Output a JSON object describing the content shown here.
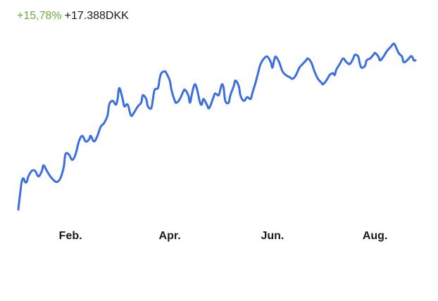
{
  "summary": {
    "change_percent": "+15,78%",
    "change_amount": "+17.388DKK",
    "positive_color": "#6aaa3a"
  },
  "chart_data": {
    "type": "line",
    "line_color": "#3b6fe0",
    "grid": false,
    "x_tick_labels": [
      {
        "label": "Feb.",
        "x": 31
      },
      {
        "label": "Apr.",
        "x": 90
      },
      {
        "label": "Jun.",
        "x": 151
      },
      {
        "label": "Aug.",
        "x": 212
      }
    ],
    "ylim": [
      0,
      100
    ],
    "xlim": [
      0,
      236
    ],
    "series": [
      {
        "values": [
          [
            0,
            0
          ],
          [
            1,
            8
          ],
          [
            2,
            15
          ],
          [
            3,
            17
          ],
          [
            4,
            15
          ],
          [
            5,
            15
          ],
          [
            6,
            18
          ],
          [
            8,
            21
          ],
          [
            10,
            21
          ],
          [
            12,
            18
          ],
          [
            14,
            21
          ],
          [
            15,
            24
          ],
          [
            17,
            21
          ],
          [
            19,
            18
          ],
          [
            21,
            16
          ],
          [
            23,
            15
          ],
          [
            25,
            17
          ],
          [
            27,
            23
          ],
          [
            28,
            30
          ],
          [
            30,
            30
          ],
          [
            32,
            27
          ],
          [
            34,
            30
          ],
          [
            36,
            37
          ],
          [
            38,
            40
          ],
          [
            40,
            37
          ],
          [
            42,
            38
          ],
          [
            43,
            40
          ],
          [
            45,
            37
          ],
          [
            47,
            40
          ],
          [
            49,
            45
          ],
          [
            51,
            47
          ],
          [
            53,
            51
          ],
          [
            54,
            57
          ],
          [
            56,
            59
          ],
          [
            58,
            57
          ],
          [
            59,
            60
          ],
          [
            60,
            66
          ],
          [
            62,
            60
          ],
          [
            63,
            56
          ],
          [
            65,
            57
          ],
          [
            67,
            51
          ],
          [
            69,
            53
          ],
          [
            71,
            56
          ],
          [
            73,
            58
          ],
          [
            74,
            62
          ],
          [
            76,
            60
          ],
          [
            77,
            56
          ],
          [
            79,
            55
          ],
          [
            80,
            60
          ],
          [
            81,
            65
          ],
          [
            83,
            66
          ],
          [
            84,
            71
          ],
          [
            85,
            74
          ],
          [
            87,
            75
          ],
          [
            88,
            74
          ],
          [
            90,
            70
          ],
          [
            91,
            65
          ],
          [
            93,
            59
          ],
          [
            94,
            58
          ],
          [
            96,
            60
          ],
          [
            98,
            64
          ],
          [
            99,
            65
          ],
          [
            101,
            62
          ],
          [
            102,
            58
          ],
          [
            103,
            62
          ],
          [
            104,
            66
          ],
          [
            105,
            68
          ],
          [
            106,
            66
          ],
          [
            107,
            62
          ],
          [
            108,
            58
          ],
          [
            109,
            57
          ],
          [
            110,
            60
          ],
          [
            112,
            57
          ],
          [
            113,
            55
          ],
          [
            114,
            56
          ],
          [
            116,
            61
          ],
          [
            117,
            63
          ],
          [
            119,
            62
          ],
          [
            120,
            65
          ],
          [
            121,
            68
          ],
          [
            122,
            66
          ],
          [
            123,
            59
          ],
          [
            125,
            58
          ],
          [
            126,
            62
          ],
          [
            128,
            67
          ],
          [
            129,
            70
          ],
          [
            131,
            67
          ],
          [
            132,
            62
          ],
          [
            134,
            59
          ],
          [
            136,
            61
          ],
          [
            138,
            60
          ],
          [
            139,
            63
          ],
          [
            141,
            69
          ],
          [
            143,
            76
          ],
          [
            144,
            79
          ],
          [
            146,
            82
          ],
          [
            148,
            83
          ],
          [
            150,
            80
          ],
          [
            151,
            77
          ],
          [
            152,
            81
          ],
          [
            153,
            83
          ],
          [
            155,
            80
          ],
          [
            157,
            75
          ],
          [
            159,
            73
          ],
          [
            161,
            72
          ],
          [
            163,
            71
          ],
          [
            165,
            73
          ],
          [
            167,
            77
          ],
          [
            169,
            79
          ],
          [
            171,
            81
          ],
          [
            172,
            82
          ],
          [
            174,
            80
          ],
          [
            176,
            75
          ],
          [
            178,
            71
          ],
          [
            180,
            69
          ],
          [
            181,
            68
          ],
          [
            183,
            70
          ],
          [
            185,
            73
          ],
          [
            187,
            74
          ],
          [
            188,
            73
          ],
          [
            189,
            76
          ],
          [
            191,
            79
          ],
          [
            193,
            82
          ],
          [
            195,
            80
          ],
          [
            197,
            79
          ],
          [
            199,
            82
          ],
          [
            200,
            84
          ],
          [
            202,
            83
          ],
          [
            203,
            79
          ],
          [
            204,
            77
          ],
          [
            206,
            78
          ],
          [
            207,
            81
          ],
          [
            209,
            82
          ],
          [
            211,
            84
          ],
          [
            212,
            85
          ],
          [
            214,
            83
          ],
          [
            215,
            81
          ],
          [
            217,
            83
          ],
          [
            219,
            86
          ],
          [
            221,
            88
          ],
          [
            223,
            90
          ],
          [
            224,
            89
          ],
          [
            226,
            85
          ],
          [
            228,
            83
          ],
          [
            229,
            80
          ],
          [
            231,
            81
          ],
          [
            233,
            83
          ],
          [
            234,
            83
          ],
          [
            235,
            81
          ],
          [
            236,
            81
          ]
        ]
      }
    ]
  }
}
